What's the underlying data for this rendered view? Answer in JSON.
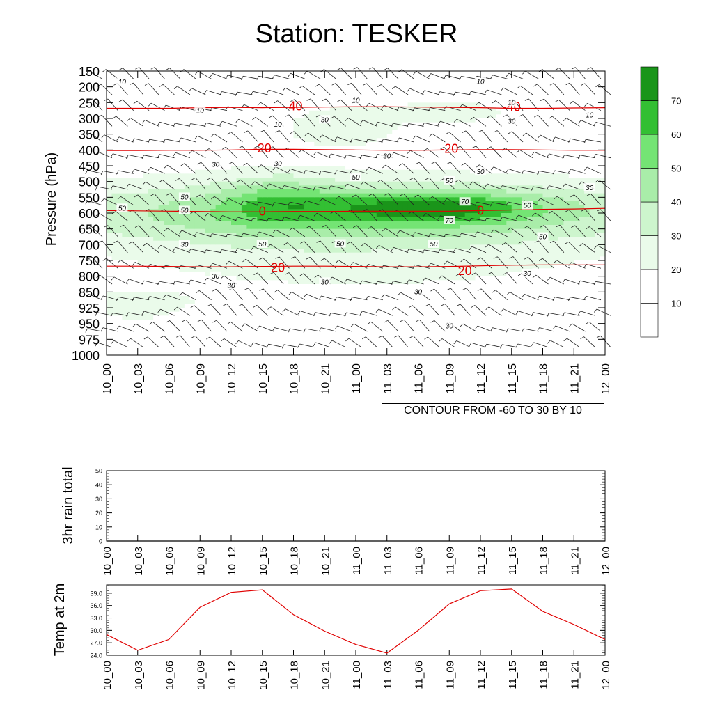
{
  "title": "Station: TESKER",
  "contour_info": "CONTOUR FROM -60 TO 30 BY 10",
  "colors": {
    "shade": [
      "#ffffff",
      "#ffffff",
      "#eafbea",
      "#cdf5cd",
      "#a9eda9",
      "#74e474",
      "#33bf33",
      "#1a951a"
    ],
    "temperature_contour": "#e00000",
    "lines": "#000000"
  },
  "chart_data": [
    {
      "id": "humidity-cross-section",
      "type": "heatmap",
      "ylabel": "Pressure (hPa)",
      "x_ticks": [
        "10_00",
        "10_03",
        "10_06",
        "10_09",
        "10_12",
        "10_15",
        "10_18",
        "10_21",
        "11_00",
        "11_03",
        "11_06",
        "11_09",
        "11_12",
        "11_15",
        "11_18",
        "11_21",
        "12_00"
      ],
      "y_ticks": [
        "150",
        "200",
        "250",
        "300",
        "350",
        "400",
        "450",
        "500",
        "550",
        "600",
        "650",
        "700",
        "750",
        "800",
        "850",
        "925",
        "950",
        "975",
        "1000"
      ],
      "colorbar": {
        "levels": [
          0,
          10,
          20,
          30,
          40,
          50,
          60,
          70,
          80
        ],
        "tick_labels": [
          "10",
          "20",
          "30",
          "40",
          "50",
          "60",
          "70"
        ]
      },
      "shading_bottom_pressure": 950,
      "temperature_contours": [
        {
          "value": -40,
          "pressures": [
            268,
            268,
            268,
            266,
            265,
            266,
            265,
            264,
            263,
            263,
            264,
            265,
            266,
            268,
            268,
            267,
            266
          ]
        },
        {
          "value": -20,
          "pressures": [
            402,
            402,
            401,
            401,
            400,
            398,
            398,
            399,
            400,
            401,
            401,
            400,
            399,
            399,
            400,
            401,
            401
          ]
        },
        {
          "value": 0,
          "pressures": [
            592,
            593,
            594,
            595,
            596,
            596,
            595,
            595,
            594,
            594,
            594,
            594,
            592,
            590,
            588,
            587,
            585
          ]
        },
        {
          "value": 20,
          "pressures": [
            768,
            768,
            769,
            770,
            770,
            769,
            768,
            768,
            769,
            770,
            770,
            769,
            767,
            765,
            764,
            764,
            764
          ]
        }
      ],
      "temperature_labels": [
        {
          "text": "-40",
          "t": 6,
          "p": 261
        },
        {
          "text": "-40",
          "t": 13,
          "p": 264
        },
        {
          "text": "-20",
          "t": 5,
          "p": 395
        },
        {
          "text": "-20",
          "t": 11,
          "p": 396
        },
        {
          "text": "0",
          "t": 5,
          "p": 595
        },
        {
          "text": "0",
          "t": 12,
          "p": 592
        },
        {
          "text": "20",
          "t": 5.5,
          "p": 773
        },
        {
          "text": "20",
          "t": 11.5,
          "p": 783
        }
      ],
      "humidity_labels": [
        {
          "text": "10",
          "t": 0.5,
          "p": 183
        },
        {
          "text": "10",
          "t": 3,
          "p": 275
        },
        {
          "text": "10",
          "t": 5.5,
          "p": 318
        },
        {
          "text": "10",
          "t": 8,
          "p": 242
        },
        {
          "text": "10",
          "t": 12,
          "p": 182
        },
        {
          "text": "10",
          "t": 15.5,
          "p": 288
        },
        {
          "text": "10",
          "t": 13,
          "p": 248
        },
        {
          "text": "30",
          "t": 7,
          "p": 303
        },
        {
          "text": "30",
          "t": 9,
          "p": 418
        },
        {
          "text": "30",
          "t": 3.5,
          "p": 445
        },
        {
          "text": "30",
          "t": 5.5,
          "p": 442
        },
        {
          "text": "30",
          "t": 12,
          "p": 468
        },
        {
          "text": "30",
          "t": 13,
          "p": 308
        },
        {
          "text": "30",
          "t": 15.5,
          "p": 518
        },
        {
          "text": "30",
          "t": 2.5,
          "p": 698
        },
        {
          "text": "30",
          "t": 3.5,
          "p": 798
        },
        {
          "text": "30",
          "t": 4,
          "p": 828
        },
        {
          "text": "30",
          "t": 7,
          "p": 817
        },
        {
          "text": "30",
          "t": 10,
          "p": 848
        },
        {
          "text": "30",
          "t": 13.5,
          "p": 790
        },
        {
          "text": "30",
          "t": 11,
          "p": 953
        },
        {
          "text": "50",
          "t": 0.5,
          "p": 583
        },
        {
          "text": "50",
          "t": 2.5,
          "p": 548
        },
        {
          "text": "50",
          "t": 2.5,
          "p": 590
        },
        {
          "text": "50",
          "t": 8,
          "p": 485
        },
        {
          "text": "50",
          "t": 11,
          "p": 496
        },
        {
          "text": "50",
          "t": 5,
          "p": 697
        },
        {
          "text": "50",
          "t": 7.5,
          "p": 696
        },
        {
          "text": "50",
          "t": 10.5,
          "p": 697
        },
        {
          "text": "50",
          "t": 13.5,
          "p": 575
        },
        {
          "text": "50",
          "t": 14,
          "p": 674
        },
        {
          "text": "70",
          "t": 11.5,
          "p": 563
        },
        {
          "text": "70",
          "t": 11,
          "p": 622
        }
      ]
    },
    {
      "id": "rain-total",
      "type": "line",
      "ylabel": "3hr rain total",
      "ylim": [
        0,
        50
      ],
      "y_ticks": [
        "0",
        "10",
        "20",
        "30",
        "40",
        "50"
      ],
      "categories": [
        "10_00",
        "10_03",
        "10_06",
        "10_09",
        "10_12",
        "10_15",
        "10_18",
        "10_21",
        "11_00",
        "11_03",
        "11_06",
        "11_09",
        "11_12",
        "11_15",
        "11_18",
        "11_21",
        "12_00"
      ],
      "values": [
        0,
        0,
        0,
        0,
        0,
        0,
        0,
        0,
        0,
        0,
        0,
        0,
        0,
        0,
        0,
        0,
        0
      ]
    },
    {
      "id": "temp-2m",
      "type": "line",
      "ylabel": "Temp at 2m",
      "ylim": [
        24.0,
        41.0
      ],
      "y_ticks": [
        "24.0",
        "27.0",
        "30.0",
        "33.0",
        "36.0",
        "39.0"
      ],
      "categories": [
        "10_00",
        "10_03",
        "10_06",
        "10_09",
        "10_12",
        "10_15",
        "10_18",
        "10_21",
        "11_00",
        "11_03",
        "11_06",
        "11_09",
        "11_12",
        "11_15",
        "11_18",
        "11_21",
        "12_00"
      ],
      "values": [
        29.0,
        25.2,
        27.8,
        35.6,
        39.2,
        39.8,
        33.8,
        29.8,
        26.6,
        24.5,
        30.0,
        36.4,
        39.6,
        40.0,
        34.6,
        31.4,
        27.8
      ],
      "color": "#e00000"
    }
  ]
}
